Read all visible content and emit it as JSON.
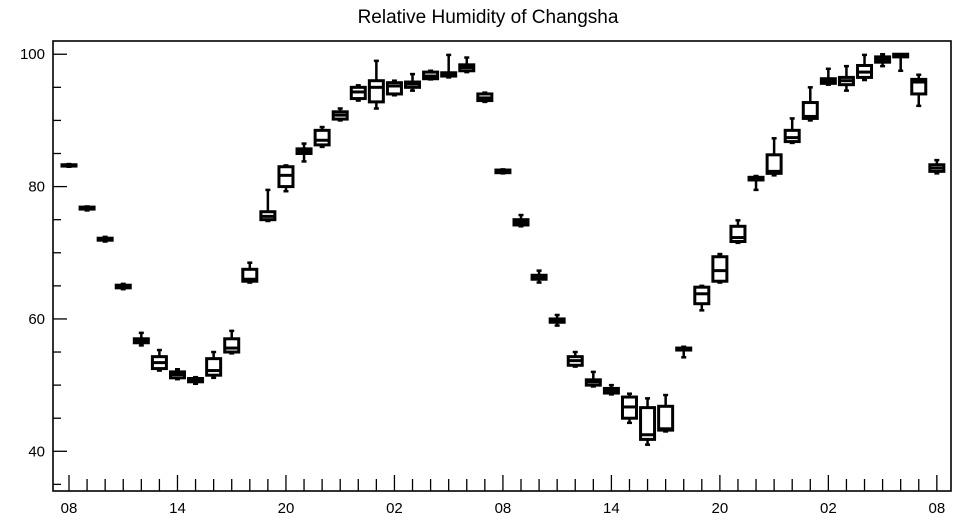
{
  "chart_data": {
    "type": "box",
    "title": "Relative Humidity of Changsha",
    "xlabel": "",
    "ylabel": "",
    "ylim": [
      34,
      102
    ],
    "y_ticks": [
      40,
      60,
      80,
      100
    ],
    "x_tick_labels": [
      "08",
      "14",
      "20",
      "02",
      "08",
      "14",
      "20",
      "02",
      "08"
    ],
    "x_tick_positions": [
      0,
      6,
      12,
      18,
      24,
      30,
      36,
      42,
      48
    ],
    "grid": false,
    "boxes": [
      {
        "x": 0,
        "min": 83.0,
        "q1": 83.1,
        "median": 83.2,
        "q3": 83.3,
        "max": 83.4
      },
      {
        "x": 1,
        "min": 76.4,
        "q1": 76.6,
        "median": 76.7,
        "q3": 76.9,
        "max": 77.0
      },
      {
        "x": 2,
        "min": 71.7,
        "q1": 71.9,
        "median": 72.0,
        "q3": 72.2,
        "max": 72.4
      },
      {
        "x": 3,
        "min": 64.5,
        "q1": 64.7,
        "median": 64.9,
        "q3": 65.1,
        "max": 65.3
      },
      {
        "x": 4,
        "min": 56.0,
        "q1": 56.4,
        "median": 56.8,
        "q3": 57.0,
        "max": 57.9
      },
      {
        "x": 5,
        "min": 52.2,
        "q1": 52.5,
        "median": 53.4,
        "q3": 54.3,
        "max": 55.3
      },
      {
        "x": 6,
        "min": 50.9,
        "q1": 51.1,
        "median": 51.6,
        "q3": 52.0,
        "max": 52.4
      },
      {
        "x": 7,
        "min": 50.2,
        "q1": 50.5,
        "median": 50.8,
        "q3": 51.0,
        "max": 51.2
      },
      {
        "x": 8,
        "min": 51.1,
        "q1": 51.5,
        "median": 52.2,
        "q3": 54.0,
        "max": 55.0
      },
      {
        "x": 9,
        "min": 54.8,
        "q1": 55.0,
        "median": 55.6,
        "q3": 57.0,
        "max": 58.2
      },
      {
        "x": 10,
        "min": 65.5,
        "q1": 65.7,
        "median": 66.0,
        "q3": 67.5,
        "max": 68.5
      },
      {
        "x": 11,
        "min": 74.8,
        "q1": 75.0,
        "median": 75.5,
        "q3": 76.2,
        "max": 79.5
      },
      {
        "x": 12,
        "min": 79.3,
        "q1": 80.0,
        "median": 81.7,
        "q3": 83.0,
        "max": 83.2
      },
      {
        "x": 13,
        "min": 83.8,
        "q1": 85.0,
        "median": 85.3,
        "q3": 85.7,
        "max": 86.5
      },
      {
        "x": 14,
        "min": 86.0,
        "q1": 86.3,
        "median": 87.0,
        "q3": 88.5,
        "max": 89.0
      },
      {
        "x": 15,
        "min": 90.0,
        "q1": 90.2,
        "median": 90.8,
        "q3": 91.3,
        "max": 91.8
      },
      {
        "x": 16,
        "min": 93.0,
        "q1": 93.3,
        "median": 94.3,
        "q3": 95.0,
        "max": 95.3
      },
      {
        "x": 17,
        "min": 91.8,
        "q1": 92.8,
        "median": 95.0,
        "q3": 96.0,
        "max": 99.0
      },
      {
        "x": 18,
        "min": 93.8,
        "q1": 94.0,
        "median": 95.2,
        "q3": 95.7,
        "max": 96.0
      },
      {
        "x": 19,
        "min": 94.5,
        "q1": 95.0,
        "median": 95.5,
        "q3": 95.8,
        "max": 97.0
      },
      {
        "x": 20,
        "min": 96.2,
        "q1": 96.3,
        "median": 96.7,
        "q3": 97.3,
        "max": 97.5
      },
      {
        "x": 21,
        "min": 96.5,
        "q1": 96.7,
        "median": 96.9,
        "q3": 97.2,
        "max": 99.9
      },
      {
        "x": 22,
        "min": 97.3,
        "q1": 97.5,
        "median": 98.0,
        "q3": 98.4,
        "max": 99.5
      },
      {
        "x": 23,
        "min": 92.8,
        "q1": 93.0,
        "median": 93.4,
        "q3": 94.0,
        "max": 94.2
      },
      {
        "x": 24,
        "min": 82.0,
        "q1": 82.1,
        "median": 82.3,
        "q3": 82.5,
        "max": 82.6
      },
      {
        "x": 25,
        "min": 74.0,
        "q1": 74.2,
        "median": 74.6,
        "q3": 75.0,
        "max": 75.7
      },
      {
        "x": 26,
        "min": 65.5,
        "q1": 66.0,
        "median": 66.3,
        "q3": 66.6,
        "max": 67.3
      },
      {
        "x": 27,
        "min": 59.0,
        "q1": 59.5,
        "median": 59.8,
        "q3": 60.0,
        "max": 60.6
      },
      {
        "x": 28,
        "min": 52.8,
        "q1": 53.0,
        "median": 53.7,
        "q3": 54.3,
        "max": 55.0
      },
      {
        "x": 29,
        "min": 49.8,
        "q1": 50.0,
        "median": 50.5,
        "q3": 50.8,
        "max": 52.0
      },
      {
        "x": 30,
        "min": 48.6,
        "q1": 48.8,
        "median": 49.2,
        "q3": 49.5,
        "max": 50.0
      },
      {
        "x": 31,
        "min": 44.3,
        "q1": 45.0,
        "median": 46.7,
        "q3": 48.2,
        "max": 48.7
      },
      {
        "x": 32,
        "min": 41.0,
        "q1": 41.8,
        "median": 42.5,
        "q3": 46.6,
        "max": 48.0
      },
      {
        "x": 33,
        "min": 43.0,
        "q1": 43.2,
        "median": 43.4,
        "q3": 46.8,
        "max": 48.5
      },
      {
        "x": 34,
        "min": 54.2,
        "q1": 55.3,
        "median": 55.5,
        "q3": 55.6,
        "max": 55.8
      },
      {
        "x": 35,
        "min": 61.3,
        "q1": 62.3,
        "median": 63.8,
        "q3": 64.8,
        "max": 65.0
      },
      {
        "x": 36,
        "min": 65.5,
        "q1": 65.7,
        "median": 67.3,
        "q3": 69.4,
        "max": 69.8
      },
      {
        "x": 37,
        "min": 71.5,
        "q1": 71.7,
        "median": 72.3,
        "q3": 74.0,
        "max": 74.9
      },
      {
        "x": 38,
        "min": 79.5,
        "q1": 81.0,
        "median": 81.2,
        "q3": 81.4,
        "max": 81.6
      },
      {
        "x": 39,
        "min": 81.7,
        "q1": 82.0,
        "median": 82.3,
        "q3": 84.8,
        "max": 87.3
      },
      {
        "x": 40,
        "min": 86.6,
        "q1": 86.8,
        "median": 87.4,
        "q3": 88.5,
        "max": 90.3
      },
      {
        "x": 41,
        "min": 90.0,
        "q1": 90.3,
        "median": 90.6,
        "q3": 92.7,
        "max": 95.0
      },
      {
        "x": 42,
        "min": 95.4,
        "q1": 95.6,
        "median": 96.0,
        "q3": 96.3,
        "max": 97.8
      },
      {
        "x": 43,
        "min": 94.5,
        "q1": 95.4,
        "median": 96.0,
        "q3": 96.5,
        "max": 98.2
      },
      {
        "x": 44,
        "min": 96.1,
        "q1": 96.5,
        "median": 97.3,
        "q3": 98.3,
        "max": 99.9
      },
      {
        "x": 45,
        "min": 98.2,
        "q1": 98.8,
        "median": 99.2,
        "q3": 99.6,
        "max": 100.0
      },
      {
        "x": 46,
        "min": 97.5,
        "q1": 99.6,
        "median": 99.8,
        "q3": 100.0,
        "max": 100.0
      },
      {
        "x": 47,
        "min": 92.2,
        "q1": 94.0,
        "median": 95.8,
        "q3": 96.2,
        "max": 96.9
      },
      {
        "x": 48,
        "min": 82.0,
        "q1": 82.3,
        "median": 82.8,
        "q3": 83.3,
        "max": 84.0
      }
    ]
  }
}
